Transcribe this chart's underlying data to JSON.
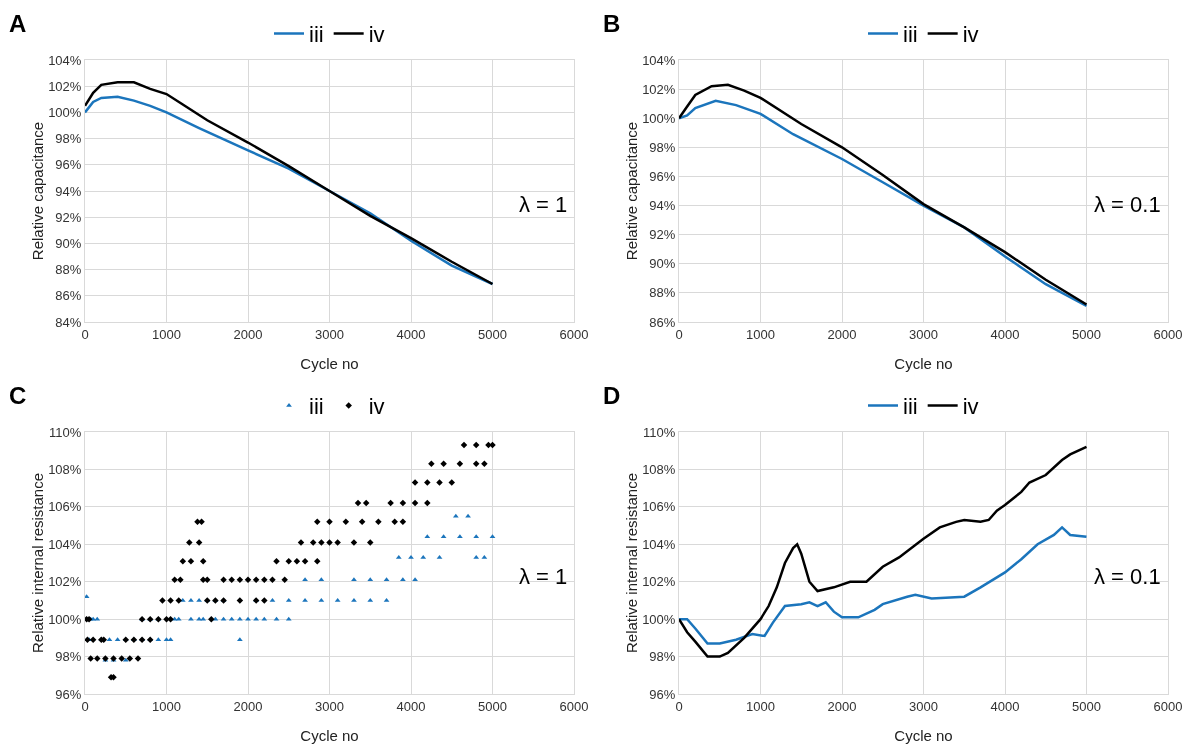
{
  "chart_data": [
    {
      "type": "line",
      "title": "A",
      "xlabel": "Cycle no",
      "ylabel": "Relative capacitance",
      "annotations": [
        "λ = 1"
      ],
      "legend": "top",
      "grid": true,
      "marker": "none",
      "line_style": "solid",
      "xlim": [
        0,
        6000
      ],
      "xticks": [
        0,
        1000,
        2000,
        3000,
        4000,
        5000,
        6000
      ],
      "ylim": [
        84,
        104
      ],
      "yticks": [
        {
          "value": 84,
          "label": "84%"
        },
        {
          "value": 86,
          "label": "86%"
        },
        {
          "value": 88,
          "label": "88%"
        },
        {
          "value": 90,
          "label": "90%"
        },
        {
          "value": 92,
          "label": "92%"
        },
        {
          "value": 94,
          "label": "94%"
        },
        {
          "value": 96,
          "label": "96%"
        },
        {
          "value": 98,
          "label": "98%"
        },
        {
          "value": 100,
          "label": "100%"
        },
        {
          "value": 102,
          "label": "102%"
        },
        {
          "value": 104,
          "label": "104%"
        }
      ],
      "series": [
        {
          "name": "iii",
          "color": "#1b75bc",
          "x": [
            0,
            100,
            200,
            400,
            600,
            800,
            1000,
            1400,
            2000,
            2500,
            3000,
            3500,
            4000,
            4500,
            5000
          ],
          "values": [
            100,
            100.8,
            101.1,
            101.2,
            100.9,
            100.5,
            100,
            98.8,
            97.1,
            95.7,
            94,
            92.3,
            90.2,
            88.3,
            86.9
          ]
        },
        {
          "name": "iv",
          "color": "#000000",
          "x": [
            0,
            100,
            200,
            400,
            600,
            800,
            1000,
            1200,
            1500,
            2000,
            2500,
            3000,
            3500,
            4000,
            4500,
            5000
          ],
          "values": [
            100.5,
            101.5,
            102.1,
            102.3,
            102.3,
            101.8,
            101.4,
            100.6,
            99.4,
            97.7,
            95.9,
            94,
            92.1,
            90.4,
            88.6,
            86.9
          ]
        }
      ]
    },
    {
      "type": "line",
      "title": "B",
      "xlabel": "Cycle no",
      "ylabel": "Relative capacitance",
      "annotations": [
        "λ = 0.1"
      ],
      "legend": "top",
      "grid": true,
      "marker": "none",
      "line_style": "solid",
      "xlim": [
        0,
        6000
      ],
      "xticks": [
        0,
        1000,
        2000,
        3000,
        4000,
        5000,
        6000
      ],
      "ylim": [
        86,
        104
      ],
      "yticks": [
        {
          "value": 86,
          "label": "86%"
        },
        {
          "value": 88,
          "label": "88%"
        },
        {
          "value": 90,
          "label": "90%"
        },
        {
          "value": 92,
          "label": "92%"
        },
        {
          "value": 94,
          "label": "94%"
        },
        {
          "value": 96,
          "label": "96%"
        },
        {
          "value": 98,
          "label": "98%"
        },
        {
          "value": 100,
          "label": "100%"
        },
        {
          "value": 102,
          "label": "102%"
        },
        {
          "value": 104,
          "label": "104%"
        }
      ],
      "series": [
        {
          "name": "iii",
          "color": "#1b75bc",
          "x": [
            0,
            100,
            200,
            450,
            700,
            1000,
            1400,
            2000,
            2500,
            3000,
            3500,
            4000,
            4500,
            5000
          ],
          "values": [
            100,
            100.2,
            100.7,
            101.2,
            100.9,
            100.3,
            98.9,
            97.2,
            95.6,
            94,
            92.5,
            90.5,
            88.6,
            87.1
          ]
        },
        {
          "name": "iv",
          "color": "#000000",
          "x": [
            0,
            100,
            200,
            400,
            600,
            800,
            1000,
            1500,
            2000,
            2500,
            3000,
            3500,
            4000,
            4500,
            5000
          ],
          "values": [
            100,
            100.8,
            101.6,
            102.2,
            102.3,
            101.9,
            101.4,
            99.6,
            98,
            96.1,
            94.1,
            92.5,
            90.8,
            88.9,
            87.2
          ]
        }
      ]
    },
    {
      "type": "scatter",
      "title": "C",
      "xlabel": "Cycle no",
      "ylabel": "Relative internal resistance",
      "annotations": [
        "λ = 1"
      ],
      "legend": "top",
      "grid": true,
      "xlim": [
        0,
        6000
      ],
      "xticks": [
        0,
        1000,
        2000,
        3000,
        4000,
        5000,
        6000
      ],
      "ylim": [
        96,
        110
      ],
      "yticks": [
        {
          "value": 96,
          "label": "96%"
        },
        {
          "value": 98,
          "label": "98%"
        },
        {
          "value": 100,
          "label": "100%"
        },
        {
          "value": 102,
          "label": "102%"
        },
        {
          "value": 104,
          "label": "104%"
        },
        {
          "value": 106,
          "label": "106%"
        },
        {
          "value": 108,
          "label": "108%"
        },
        {
          "value": 110,
          "label": "110%"
        }
      ],
      "series": [
        {
          "name": "iii",
          "color": "#1b75bc",
          "marker": "triangle",
          "x": [
            20,
            70,
            100,
            150,
            50,
            200,
            300,
            400,
            500,
            600,
            700,
            800,
            900,
            1000,
            1050,
            250,
            350,
            500,
            700,
            800,
            900,
            1100,
            1150,
            1300,
            1400,
            1450,
            1600,
            1700,
            1800,
            1900,
            2000,
            2100,
            2200,
            2350,
            2500,
            1900,
            1200,
            1300,
            1400,
            1500,
            1600,
            1700,
            2100,
            2300,
            2500,
            2700,
            2900,
            3100,
            3300,
            3500,
            3700,
            2700,
            2900,
            3300,
            3500,
            3700,
            3900,
            4050,
            3850,
            4000,
            4150,
            4350,
            4200,
            4400,
            4600,
            4800,
            5000,
            4550,
            4700,
            4800,
            4900
          ],
          "values": [
            101.2,
            100,
            100,
            100,
            98.9,
            98.9,
            98.9,
            98.9,
            98.9,
            98.9,
            98.9,
            98.9,
            98.9,
            98.9,
            98.9,
            97.8,
            97.8,
            97.8,
            100,
            100,
            100,
            100,
            100,
            100,
            100,
            100,
            100,
            100,
            100,
            100,
            100,
            100,
            100,
            100,
            100,
            98.9,
            101,
            101,
            101,
            101,
            101,
            101,
            101,
            101,
            101,
            101,
            101,
            101,
            101,
            101,
            101,
            102.1,
            102.1,
            102.1,
            102.1,
            102.1,
            102.1,
            102.1,
            103.3,
            103.3,
            103.3,
            103.3,
            104.4,
            104.4,
            104.4,
            104.4,
            104.4,
            105.5,
            105.5,
            103.3,
            103.3
          ]
        },
        {
          "name": "iv",
          "color": "#000000",
          "marker": "diamond",
          "x": [
            20,
            50,
            30,
            100,
            200,
            230,
            70,
            150,
            250,
            350,
            450,
            550,
            650,
            320,
            350,
            500,
            600,
            700,
            800,
            700,
            800,
            900,
            1000,
            1050,
            950,
            1050,
            1150,
            1100,
            1170,
            1200,
            1300,
            1450,
            1280,
            1400,
            1380,
            1430,
            1450,
            1500,
            1550,
            1500,
            1600,
            1700,
            1900,
            1700,
            1800,
            1900,
            2000,
            2100,
            2200,
            2300,
            2450,
            2100,
            2200,
            2350,
            2500,
            2600,
            2700,
            2850,
            2650,
            2800,
            2900,
            3000,
            3100,
            3300,
            3500,
            2850,
            3000,
            3200,
            3400,
            3600,
            3800,
            3900,
            3350,
            3450,
            3750,
            3900,
            4050,
            4200,
            4050,
            4200,
            4350,
            4500,
            4250,
            4400,
            4600,
            4800,
            4900,
            4650,
            4800,
            4950,
            5000
          ],
          "values": [
            100,
            100,
            98.9,
            98.9,
            98.9,
            98.9,
            97.9,
            97.9,
            97.9,
            97.9,
            97.9,
            97.9,
            97.9,
            96.9,
            96.9,
            98.9,
            98.9,
            98.9,
            98.9,
            100,
            100,
            100,
            100,
            100,
            101,
            101,
            101,
            102.1,
            102.1,
            103.1,
            103.1,
            103.1,
            104.1,
            104.1,
            105.2,
            105.2,
            102.1,
            102.1,
            100,
            101,
            101,
            101,
            101,
            102.1,
            102.1,
            102.1,
            102.1,
            102.1,
            102.1,
            102.1,
            102.1,
            101,
            101,
            103.1,
            103.1,
            103.1,
            103.1,
            103.1,
            104.1,
            104.1,
            104.1,
            104.1,
            104.1,
            104.1,
            104.1,
            105.2,
            105.2,
            105.2,
            105.2,
            105.2,
            105.2,
            105.2,
            106.2,
            106.2,
            106.2,
            106.2,
            106.2,
            106.2,
            107.3,
            107.3,
            107.3,
            107.3,
            108.3,
            108.3,
            108.3,
            108.3,
            108.3,
            109.3,
            109.3,
            109.3,
            109.3
          ]
        }
      ]
    },
    {
      "type": "line",
      "title": "D",
      "xlabel": "Cycle no",
      "ylabel": "Relative internal resistance",
      "annotations": [
        "λ = 0.1"
      ],
      "legend": "top",
      "grid": true,
      "marker": "none",
      "line_style": "solid",
      "xlim": [
        0,
        6000
      ],
      "xticks": [
        0,
        1000,
        2000,
        3000,
        4000,
        5000,
        6000
      ],
      "ylim": [
        96,
        110
      ],
      "yticks": [
        {
          "value": 96,
          "label": "96%"
        },
        {
          "value": 98,
          "label": "98%"
        },
        {
          "value": 100,
          "label": "100%"
        },
        {
          "value": 102,
          "label": "102%"
        },
        {
          "value": 104,
          "label": "104%"
        },
        {
          "value": 106,
          "label": "106%"
        },
        {
          "value": 108,
          "label": "108%"
        },
        {
          "value": 110,
          "label": "110%"
        }
      ],
      "series": [
        {
          "name": "iii",
          "color": "#1b75bc",
          "x": [
            0,
            100,
            200,
            350,
            500,
            700,
            900,
            1050,
            1150,
            1300,
            1500,
            1600,
            1700,
            1800,
            1900,
            2000,
            2200,
            2400,
            2500,
            2800,
            2900,
            3100,
            3500,
            3700,
            4000,
            4200,
            4400,
            4600,
            4700,
            4800,
            5000
          ],
          "values": [
            100,
            100,
            99.5,
            98.7,
            98.7,
            98.9,
            99.2,
            99.1,
            99.8,
            100.7,
            100.8,
            100.9,
            100.7,
            100.9,
            100.4,
            100.1,
            100.1,
            100.5,
            100.8,
            101.2,
            101.3,
            101.1,
            101.2,
            101.7,
            102.5,
            103.2,
            104,
            104.5,
            104.9,
            104.5,
            104.4
          ]
        },
        {
          "name": "iv",
          "color": "#000000",
          "x": [
            0,
            100,
            200,
            350,
            500,
            600,
            800,
            1000,
            1100,
            1200,
            1300,
            1400,
            1450,
            1500,
            1600,
            1700,
            1900,
            2100,
            2300,
            2500,
            2700,
            3000,
            3200,
            3400,
            3500,
            3700,
            3800,
            3900,
            4000,
            4200,
            4300,
            4500,
            4700,
            4800,
            5000
          ],
          "values": [
            100,
            99.3,
            98.8,
            98,
            98,
            98.2,
            99,
            100,
            100.7,
            101.7,
            103,
            103.8,
            104,
            103.5,
            102,
            101.5,
            101.7,
            102,
            102,
            102.8,
            103.3,
            104.3,
            104.9,
            105.2,
            105.3,
            105.2,
            105.3,
            105.8,
            106.1,
            106.8,
            107.3,
            107.7,
            108.5,
            108.8,
            109.2
          ]
        }
      ]
    }
  ]
}
